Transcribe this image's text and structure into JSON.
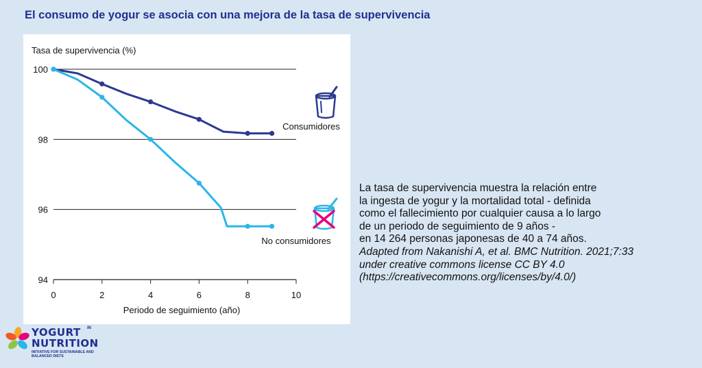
{
  "page": {
    "title": "El consumo de yogur se asocia con una mejora de la tasa de supervivencia"
  },
  "description": {
    "lines": [
      "La tasa de supervivencia muestra la relación entre",
      "la ingesta de yogur y la mortalidad total - definida",
      "como el fallecimiento por cualquier causa a lo largo",
      "de un periodo de seguimiento de 9 años -",
      "en 14 264 personas japonesas de 40 a 74 años."
    ],
    "citation": [
      "Adapted from Nakanishi A, et al. BMC Nutrition. 2021;7:33",
      "under creative commons license CC BY 4.0",
      "(https://creativecommons.org/licenses/by/4.0/)"
    ]
  },
  "logo": {
    "word1": "YOGURT",
    "in": "IN",
    "word2": "NUTRITION",
    "tagline": "INITIATIVE FOR SUSTAINABLE AND BALANCED DIETS"
  },
  "chart_data": {
    "type": "line",
    "title": "",
    "xlabel": "Periodo de seguimiento (año)",
    "ylabel": "Tasa de supervivencia (%)",
    "xlim": [
      0,
      10
    ],
    "ylim": [
      94,
      100
    ],
    "xticks": [
      0,
      2,
      4,
      6,
      8,
      10
    ],
    "yticks": [
      94,
      96,
      98,
      100
    ],
    "grid": "horizontal",
    "series": [
      {
        "name": "Consumidores",
        "color": "#2b3990",
        "icon": "yogurt-cup-icon",
        "x": [
          0,
          1,
          2,
          3,
          4,
          5,
          6,
          7,
          8,
          9
        ],
        "y": [
          100,
          99.88,
          99.58,
          99.3,
          99.07,
          98.8,
          98.57,
          98.22,
          98.17,
          98.17
        ],
        "markers_at": [
          0,
          2,
          4,
          6,
          8,
          9
        ]
      },
      {
        "name": "No consumidores",
        "color": "#29b6e8",
        "icon": "crossed-yogurt-cup-icon",
        "x": [
          0,
          1,
          2,
          3,
          4,
          5,
          6,
          6.9,
          7.15,
          8,
          9
        ],
        "y": [
          100,
          99.7,
          99.2,
          98.55,
          98,
          97.35,
          96.75,
          96.05,
          95.52,
          95.52,
          95.52
        ],
        "markers_at": [
          0,
          2,
          4,
          6,
          8,
          9
        ]
      }
    ]
  }
}
